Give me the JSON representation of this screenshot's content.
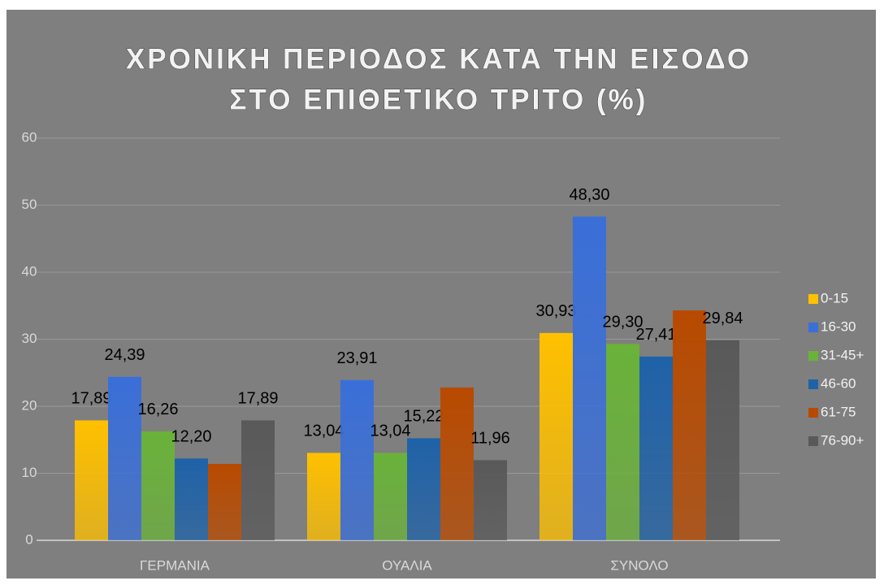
{
  "chart_data": {
    "type": "bar",
    "title": [
      "ΧΡΟΝΙΚΗ ΠΕΡΙΟΔΟΣ ΚΑΤΑ ΤΗΝ ΕΙΣΟΔΟ",
      "ΣΤΟ ΕΠΙΘΕΤΙΚΟ ΤΡΙΤΟ (%)"
    ],
    "categories": [
      "ΓΕΡΜΑΝΙΑ",
      "ΟΥΑΛΙΑ",
      "ΣΥΝΟΛΟ"
    ],
    "series": [
      {
        "name": "0-15",
        "color": "#ffc000",
        "values": [
          17.89,
          13.04,
          30.93
        ],
        "value_labels": [
          "17,89",
          "13,04",
          "30,93"
        ]
      },
      {
        "name": "16-30",
        "color": "#3a6fd8",
        "values": [
          24.39,
          23.91,
          48.3
        ],
        "value_labels": [
          "24,39",
          "23,91",
          "48,30"
        ]
      },
      {
        "name": "31-45+",
        "color": "#6ab23a",
        "values": [
          16.26,
          13.04,
          29.3
        ],
        "value_labels": [
          "16,26",
          "13,04",
          "29,30"
        ]
      },
      {
        "name": "46-60",
        "color": "#1f62a8",
        "values": [
          12.2,
          15.22,
          27.41
        ],
        "value_labels": [
          "12,20",
          "15,22",
          "27,41"
        ]
      },
      {
        "name": "61-75",
        "color": "#b84a00",
        "values": [
          11.4,
          22.8,
          34.3
        ],
        "value_labels": [
          null,
          null,
          null
        ]
      },
      {
        "name": "76-90+",
        "color": "#595959",
        "values": [
          17.89,
          11.96,
          29.84
        ],
        "value_labels": [
          "17,89",
          "11,96",
          "29,84"
        ]
      }
    ],
    "ylim": [
      0,
      60
    ],
    "yticks": [
      0,
      10,
      20,
      30,
      40,
      50,
      60
    ],
    "grid": true,
    "legend": "right"
  }
}
